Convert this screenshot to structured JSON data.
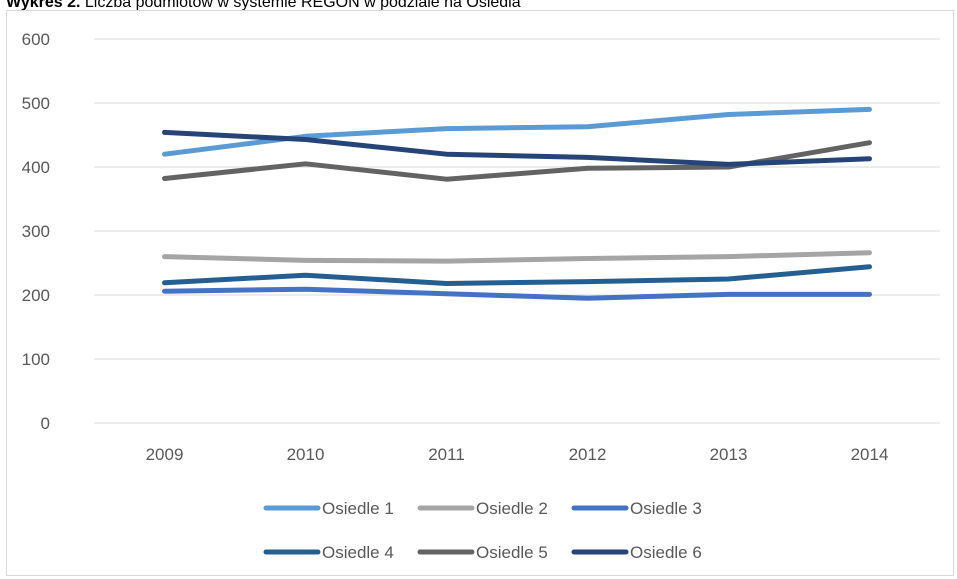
{
  "title": {
    "bold": "Wykres 2.",
    "text": "Liczba podmiotów w systemie REGON w podziale na Osiedla"
  },
  "chart_data": {
    "type": "line",
    "title": "Liczba podmiotów w systemie REGON w podziale na Osiedla",
    "xlabel": "",
    "ylabel": "",
    "categories": [
      "2009",
      "2010",
      "2011",
      "2012",
      "2013",
      "2014"
    ],
    "ylim": [
      0,
      600
    ],
    "yticks": [
      "0",
      "100",
      "200",
      "300",
      "400",
      "500",
      "600"
    ],
    "grid": true,
    "legend": "bottom",
    "series": [
      {
        "name": "Osiedle 1",
        "color": "#5b9bd5",
        "values": [
          420,
          448,
          460,
          463,
          482,
          490
        ]
      },
      {
        "name": "Osiedle 2",
        "color": "#a5a5a5",
        "values": [
          260,
          254,
          253,
          257,
          260,
          266
        ]
      },
      {
        "name": "Osiedle 3",
        "color": "#4472c4",
        "values": [
          206,
          209,
          202,
          195,
          201,
          201
        ]
      },
      {
        "name": "Osiedle 4",
        "color": "#255e91",
        "values": [
          219,
          231,
          218,
          221,
          225,
          244
        ]
      },
      {
        "name": "Osiedle 5",
        "color": "#636363",
        "values": [
          382,
          405,
          381,
          398,
          400,
          438
        ]
      },
      {
        "name": "Osiedle 6",
        "color": "#264478",
        "values": [
          454,
          443,
          420,
          415,
          404,
          413
        ]
      }
    ]
  }
}
